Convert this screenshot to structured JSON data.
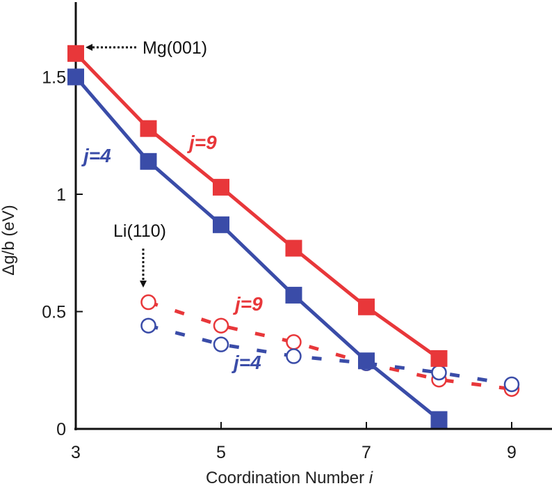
{
  "chart_data": {
    "type": "line",
    "title": "",
    "xlabel": "Coordination Number",
    "xlabel_var": "i",
    "ylabel": "Δg/b (eV)",
    "xlim": [
      3,
      9.3
    ],
    "ylim": [
      0,
      1.8
    ],
    "xticks": [
      3,
      5,
      7,
      9
    ],
    "xtick_labels": [
      "3",
      "5",
      "7",
      "9"
    ],
    "yticks": [
      0,
      0.5,
      1,
      1.5
    ],
    "ytick_labels": [
      "0",
      "0.5",
      "1",
      "1.5"
    ],
    "series": [
      {
        "name": "Mg(001) j=9",
        "label": "j=9",
        "color": "#e8373a",
        "marker": "filled-square",
        "line": "solid",
        "x": [
          3,
          4,
          5,
          6,
          7,
          8
        ],
        "values": [
          1.6,
          1.28,
          1.03,
          0.77,
          0.52,
          0.3
        ]
      },
      {
        "name": "Mg(001) j=4",
        "label": "j=4",
        "color": "#3a4ca8",
        "marker": "filled-square",
        "line": "solid",
        "x": [
          3,
          4,
          5,
          6,
          7,
          8
        ],
        "values": [
          1.5,
          1.14,
          0.87,
          0.57,
          0.29,
          0.04
        ]
      },
      {
        "name": "Li(110) j=9",
        "label": "j=9",
        "color": "#e8373a",
        "marker": "open-circle",
        "line": "dashed",
        "x": [
          4,
          5,
          6,
          7,
          8,
          9
        ],
        "values": [
          0.54,
          0.44,
          0.37,
          0.28,
          0.21,
          0.17
        ]
      },
      {
        "name": "Li(110) j=4",
        "label": "j=4",
        "color": "#3a4ca8",
        "marker": "open-circle",
        "line": "dashed",
        "x": [
          4,
          5,
          6,
          7,
          8,
          9
        ],
        "values": [
          0.44,
          0.36,
          0.31,
          0.28,
          0.24,
          0.19
        ]
      }
    ],
    "annotations": [
      {
        "text": "Mg(001)",
        "points_to": "Mg(001) j=9 at i=3"
      },
      {
        "text": "Li(110)",
        "points_to": "Li(110) j=9 at i=4"
      }
    ]
  }
}
